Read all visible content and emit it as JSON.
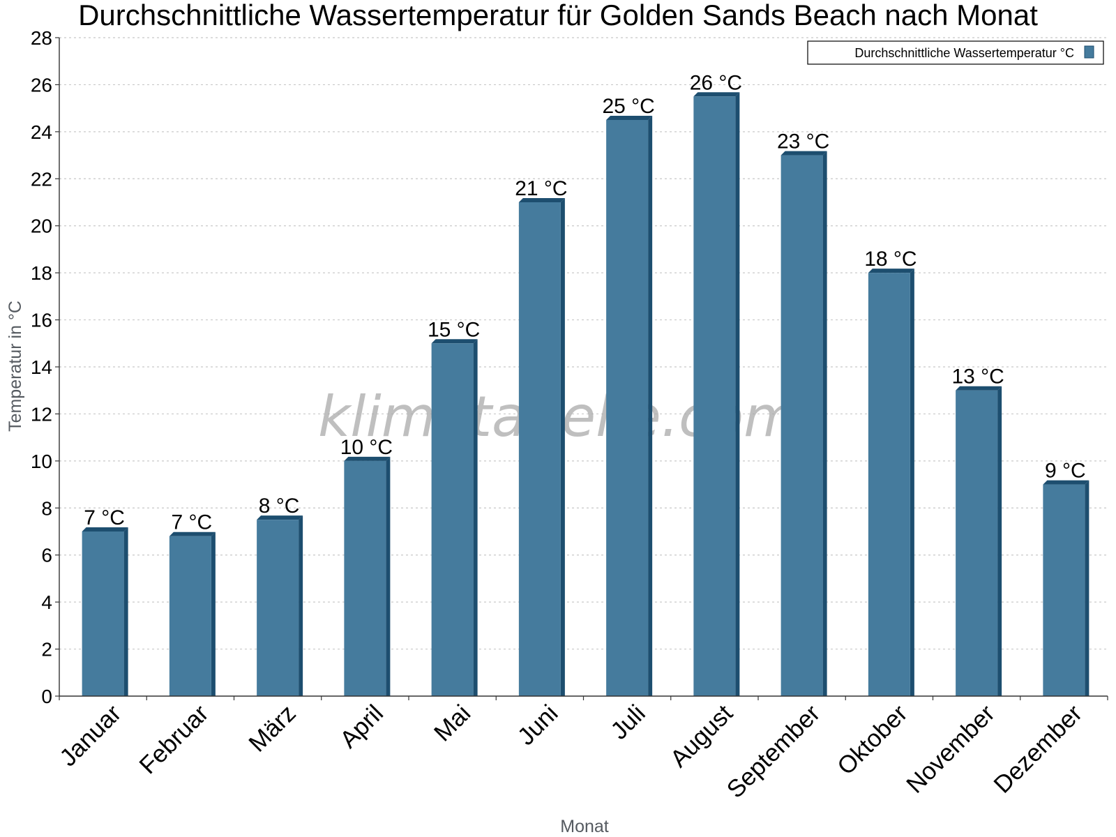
{
  "chart_data": {
    "type": "bar",
    "title": "Durchschnittliche Wassertemperatur für Golden Sands Beach nach Monat",
    "xlabel": "Monat",
    "ylabel": "Temperatur in °C",
    "categories": [
      "Januar",
      "Februar",
      "März",
      "April",
      "Mai",
      "Juni",
      "Juli",
      "August",
      "September",
      "Oktober",
      "November",
      "Dezember"
    ],
    "series": [
      {
        "name": "Durchschnittliche Wassertemperatur °C",
        "values": [
          7.0,
          6.8,
          7.5,
          10.0,
          15.0,
          21.0,
          24.5,
          25.5,
          23.0,
          18.0,
          13.0,
          9.0
        ],
        "labels": [
          "7 °C",
          "7 °C",
          "8 °C",
          "10 °C",
          "15 °C",
          "21 °C",
          "25 °C",
          "26 °C",
          "23 °C",
          "18 °C",
          "13 °C",
          "9 °C"
        ]
      }
    ],
    "ylim": [
      0,
      28
    ],
    "yticks": [
      0,
      2,
      4,
      6,
      8,
      10,
      12,
      14,
      16,
      18,
      20,
      22,
      24,
      26,
      28
    ],
    "grid": true,
    "legend_position": "top-right",
    "colors": {
      "bar": "#457b9d",
      "bar_side": "#1d4e6f"
    }
  },
  "watermark": "klimatabelle.com"
}
